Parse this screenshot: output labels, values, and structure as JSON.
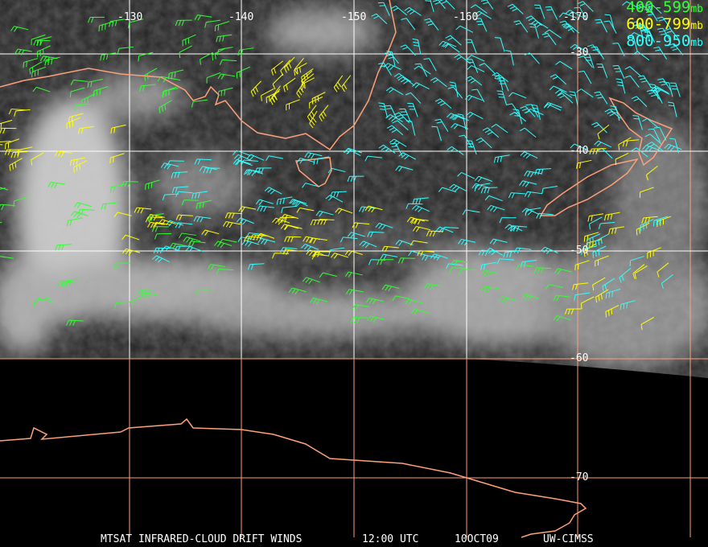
{
  "title_bar": {
    "product": "MTSAT INFRARED-CLOUD DRIFT WINDS",
    "time": "12:00 UTC",
    "date": "10OCT09",
    "source": "UW-CIMSS"
  },
  "legend": [
    {
      "range": "400-599",
      "unit": "mb",
      "color": "#33ff33"
    },
    {
      "range": "600-799",
      "unit": "mb",
      "color": "#ffff00"
    },
    {
      "range": "800-950",
      "unit": "mb",
      "color": "#33ffff"
    }
  ],
  "longitude_labels": [
    "-130",
    "-140",
    "-150",
    "-160",
    "-170"
  ],
  "latitude_labels": [
    "-30",
    "-40",
    "-50",
    "-60",
    "-70"
  ],
  "colors": {
    "gridline_land": "#ffffff",
    "gridline_space": "#ffa07a",
    "coastline": "#ffa07a"
  }
}
